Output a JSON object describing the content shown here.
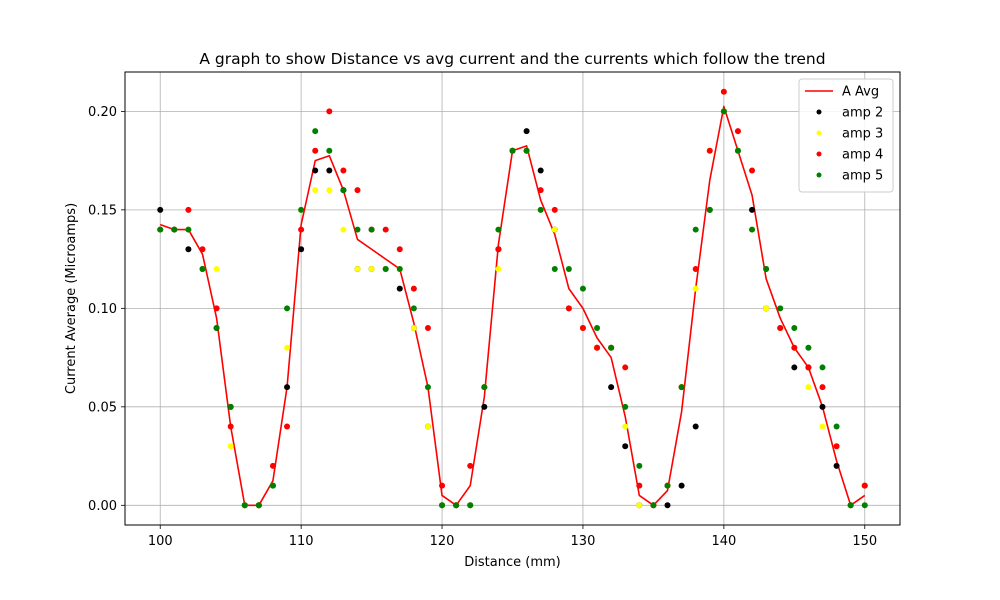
{
  "chart_data": {
    "type": "line",
    "title": "A graph to show Distance vs avg current and the currents which follow the trend",
    "xlabel": "Distance (mm)",
    "ylabel": "Current Average (Microamps)",
    "xlim": [
      97.5,
      152.5
    ],
    "ylim": [
      -0.01,
      0.22
    ],
    "xticks": [
      100,
      110,
      120,
      130,
      140,
      150
    ],
    "yticks": [
      0.0,
      0.05,
      0.1,
      0.15,
      0.2
    ],
    "ytick_labels": [
      "0.00",
      "0.05",
      "0.10",
      "0.15",
      "0.20"
    ],
    "grid": true,
    "legend_position": "top-right",
    "x": [
      100,
      101,
      102,
      103,
      104,
      105,
      106,
      107,
      108,
      109,
      110,
      111,
      112,
      113,
      114,
      115,
      116,
      117,
      118,
      119,
      120,
      121,
      122,
      123,
      124,
      125,
      126,
      127,
      128,
      129,
      130,
      131,
      132,
      133,
      134,
      135,
      136,
      137,
      138,
      139,
      140,
      141,
      142,
      143,
      144,
      145,
      146,
      147,
      148,
      149,
      150
    ],
    "series": [
      {
        "name": "A Avg",
        "kind": "line",
        "color": "#ff0000",
        "values": [
          0.1425,
          0.14,
          0.14,
          0.1275,
          0.095,
          0.04,
          0.0,
          0.0,
          0.0125,
          0.06,
          0.1425,
          0.175,
          0.1775,
          0.16,
          0.135,
          0.13,
          0.125,
          0.12,
          0.0925,
          0.06,
          0.005,
          0.0,
          0.01,
          0.055,
          0.1325,
          0.18,
          0.1825,
          0.155,
          0.1375,
          0.11,
          0.1,
          0.085,
          0.075,
          0.045,
          0.005,
          0.0,
          0.0075,
          0.0475,
          0.11,
          0.165,
          0.2025,
          0.18,
          0.1575,
          0.115,
          0.095,
          0.08,
          0.07,
          0.05,
          0.0225,
          0.0,
          0.005
        ]
      },
      {
        "name": "amp 2",
        "kind": "scatter",
        "color": "#000000",
        "values": [
          0.15,
          0.14,
          0.13,
          0.12,
          0.09,
          0.05,
          0.0,
          0.0,
          0.01,
          0.06,
          0.13,
          0.17,
          0.17,
          0.16,
          0.12,
          0.12,
          0.12,
          0.11,
          0.09,
          0.04,
          0.0,
          0.0,
          0.0,
          0.05,
          0.13,
          0.18,
          0.19,
          0.17,
          0.14,
          0.1,
          0.09,
          0.08,
          0.06,
          0.03,
          0.0,
          0.0,
          0.0,
          0.01,
          0.04,
          0.15,
          0.2,
          0.18,
          0.15,
          0.1,
          0.09,
          0.07,
          0.07,
          0.05,
          0.02,
          0.0,
          0.01
        ]
      },
      {
        "name": "amp 3",
        "kind": "scatter",
        "color": "#ffff00",
        "values": [
          0.14,
          0.14,
          0.14,
          0.12,
          0.12,
          0.03,
          0.0,
          0.0,
          0.01,
          0.08,
          0.15,
          0.16,
          0.16,
          0.14,
          0.12,
          0.12,
          0.12,
          0.12,
          0.09,
          0.04,
          0.0,
          0.0,
          0.0,
          0.06,
          0.12,
          0.18,
          0.18,
          0.15,
          0.14,
          0.1,
          0.09,
          0.08,
          0.08,
          0.04,
          0.0,
          0.0,
          0.01,
          0.06,
          0.11,
          0.18,
          0.2,
          0.18,
          0.14,
          0.1,
          0.09,
          0.08,
          0.06,
          0.04,
          0.03,
          0.0,
          0.01
        ]
      },
      {
        "name": "amp 4",
        "kind": "scatter",
        "color": "#ff0000",
        "values": [
          0.14,
          0.14,
          0.15,
          0.13,
          0.1,
          0.04,
          0.0,
          0.0,
          0.02,
          0.04,
          0.14,
          0.18,
          0.2,
          0.17,
          0.16,
          0.14,
          0.14,
          0.13,
          0.11,
          0.09,
          0.01,
          0.0,
          0.02,
          0.06,
          0.13,
          0.18,
          0.18,
          0.16,
          0.15,
          0.1,
          0.09,
          0.08,
          0.08,
          0.07,
          0.01,
          0.0,
          0.01,
          0.06,
          0.12,
          0.18,
          0.21,
          0.19,
          0.17,
          0.12,
          0.09,
          0.08,
          0.07,
          0.06,
          0.03,
          0.0,
          0.01
        ]
      },
      {
        "name": "amp 5",
        "kind": "scatter",
        "color": "#008000",
        "values": [
          0.14,
          0.14,
          0.14,
          0.12,
          0.09,
          0.05,
          0.0,
          0.0,
          0.01,
          0.1,
          0.15,
          0.19,
          0.18,
          0.16,
          0.14,
          0.14,
          0.12,
          0.12,
          0.1,
          0.06,
          0.0,
          0.0,
          0.0,
          0.06,
          0.14,
          0.18,
          0.18,
          0.15,
          0.12,
          0.12,
          0.11,
          0.09,
          0.08,
          0.05,
          0.02,
          0.0,
          0.01,
          0.06,
          0.14,
          0.15,
          0.2,
          0.18,
          0.14,
          0.12,
          0.1,
          0.09,
          0.08,
          0.07,
          0.04,
          0.0,
          0.0
        ]
      }
    ]
  }
}
